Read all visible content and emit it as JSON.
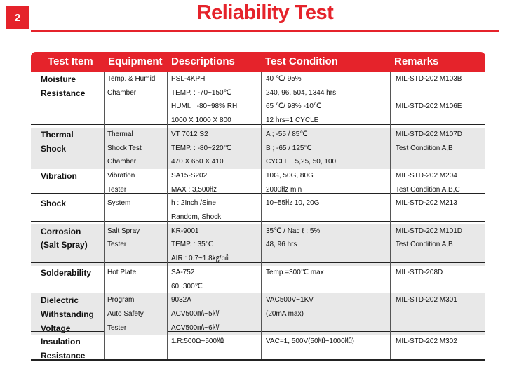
{
  "badge": "2",
  "title": "Reliability Test",
  "table": {
    "headers": [
      "Test Item",
      "Equipment",
      "Descriptions",
      "Test Condition",
      "Remarks"
    ],
    "rows": [
      {
        "item": [
          "Moisture",
          "Resistance"
        ],
        "equipment": [
          "Temp. & Humid",
          "Chamber"
        ],
        "descriptions": [
          "PSL-4KPH",
          "TEMP. : -70~150℃",
          "HUMI. : -80~98% RH",
          "1000 X 1000 X 800"
        ],
        "conditions": [
          [
            "40 ℃/ 95%",
            "240, 96, 504, 1344 hrs"
          ],
          [
            "65 ℃/ 98%  -10℃",
            "12 hrs=1 CYCLE"
          ]
        ],
        "remarks": [
          [
            "MIL-STD-202 M103B"
          ],
          [
            "MIL-STD-202 M106E"
          ]
        ]
      },
      {
        "item": [
          "Thermal",
          "Shock"
        ],
        "equipment": [
          "Thermal",
          "Shock Test",
          "Chamber"
        ],
        "descriptions": [
          "VT 7012 S2",
          "TEMP. : -80~220℃",
          "470 X 650 X 410"
        ],
        "conditions": [
          [
            "A ; -55 / 85℃",
            "B ; -65 / 125℃",
            "CYCLE : 5,25, 50, 100"
          ]
        ],
        "remarks": [
          [
            "MIL-STD-202 M107D",
            "Test Condition A,B"
          ]
        ]
      },
      {
        "item": [
          "Vibration"
        ],
        "equipment": [
          "Vibration",
          "Tester"
        ],
        "descriptions": [
          "SA15-S202",
          "MAX : 3,500㎐"
        ],
        "conditions": [
          [
            "10G, 50G, 80G",
            "2000㎐ min"
          ]
        ],
        "remarks": [
          [
            "MIL-STD-202 M204",
            "Test Condition A,B,C"
          ]
        ]
      },
      {
        "item": [
          "Shock"
        ],
        "equipment": [
          "System"
        ],
        "descriptions": [
          "h : 2Inch /Sine",
          "Random, Shock"
        ],
        "conditions": [
          [
            "10~55㎐  10, 20G"
          ]
        ],
        "remarks": [
          [
            "MIL-STD-202 M213"
          ]
        ]
      },
      {
        "item": [
          "Corrosion",
          "(Salt Spray)"
        ],
        "equipment": [
          "Salt Spray",
          "Tester"
        ],
        "descriptions": [
          "KR-9001",
          "TEMP. : 35℃",
          "AIR : 0.7~1.8㎏/㎠"
        ],
        "conditions": [
          [
            "35℃ / Nac ℓ : 5%",
            "48, 96 hrs"
          ]
        ],
        "remarks": [
          [
            "MIL-STD-202 M101D",
            "Test Condition A,B"
          ]
        ]
      },
      {
        "item": [
          "Solderability"
        ],
        "equipment": [
          "Hot Plate"
        ],
        "descriptions": [
          "SA-752",
          "60~300℃"
        ],
        "conditions": [
          [
            "Temp.=300℃ max"
          ]
        ],
        "remarks": [
          [
            "MIL-STD-208D"
          ]
        ]
      },
      {
        "item": [
          "Dielectric",
          "Withstanding",
          "Voltage"
        ],
        "equipment": [
          "Program",
          "Auto Safety",
          "Tester"
        ],
        "descriptions": [
          "9032A",
          "ACV500㎃~5㎸",
          "ACV500㎃~6㎸"
        ],
        "conditions": [
          [
            "VAC500V~1KV",
            "(20mA max)"
          ]
        ],
        "remarks": [
          [
            "MIL-STD-202 M301"
          ]
        ]
      },
      {
        "item": [
          "Insulation",
          "Resistance"
        ],
        "equipment": [],
        "descriptions": [
          "1.R:500Ω~500㏁"
        ],
        "conditions": [
          [
            "VAC=1, 500V(50㏁~1000㏁)"
          ]
        ],
        "remarks": [
          [
            "MIL-STD-202 M302"
          ]
        ]
      }
    ]
  }
}
